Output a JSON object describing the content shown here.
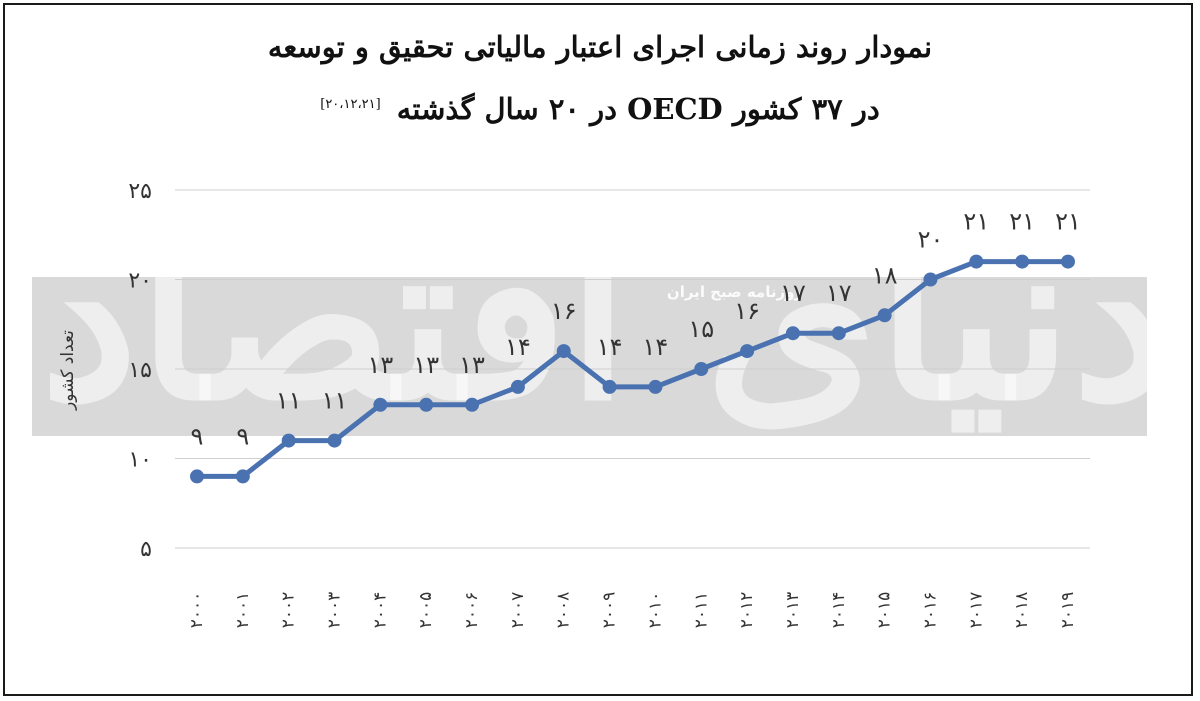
{
  "chart_data": {
    "type": "line",
    "title": "نمودار روند زمانی اجرای اعتبار مالیاتی تحقیق و توسعه",
    "subtitle": "در ۳۷ کشور OECD در ۲۰ سال گذشته",
    "reference": "[۲۰،۱۲،۲۱]",
    "ylabel": "تعداد کشور",
    "ylim": [
      5,
      25
    ],
    "yticks": [
      "۵",
      "۱۰",
      "۱۵",
      "۲۰",
      "۲۵"
    ],
    "categories": [
      "۲۰۰۰",
      "۲۰۰۱",
      "۲۰۰۲",
      "۲۰۰۳",
      "۲۰۰۴",
      "۲۰۰۵",
      "۲۰۰۶",
      "۲۰۰۷",
      "۲۰۰۸",
      "۲۰۰۹",
      "۲۰۱۰",
      "۲۰۱۱",
      "۲۰۱۲",
      "۲۰۱۳",
      "۲۰۱۴",
      "۲۰۱۵",
      "۲۰۱۶",
      "۲۰۱۷",
      "۲۰۱۸",
      "۲۰۱۹"
    ],
    "values": [
      9,
      9,
      11,
      11,
      13,
      13,
      13,
      14,
      16,
      14,
      14,
      15,
      16,
      17,
      17,
      18,
      20,
      21,
      21,
      21
    ],
    "data_labels": [
      "۹",
      "۹",
      "۱۱",
      "۱۱",
      "۱۳",
      "۱۳",
      "۱۳",
      "۱۴",
      "۱۶",
      "۱۴",
      "۱۴",
      "۱۵",
      "۱۶",
      "۱۷",
      "۱۷",
      "۱۸",
      "۲۰",
      "۲۱",
      "۲۱",
      "۲۱"
    ],
    "grid": true,
    "line_color": "#4a72b0"
  },
  "watermark": {
    "text": "دنیای اقتصاد",
    "badge": "روزنامه صبح ایران"
  }
}
